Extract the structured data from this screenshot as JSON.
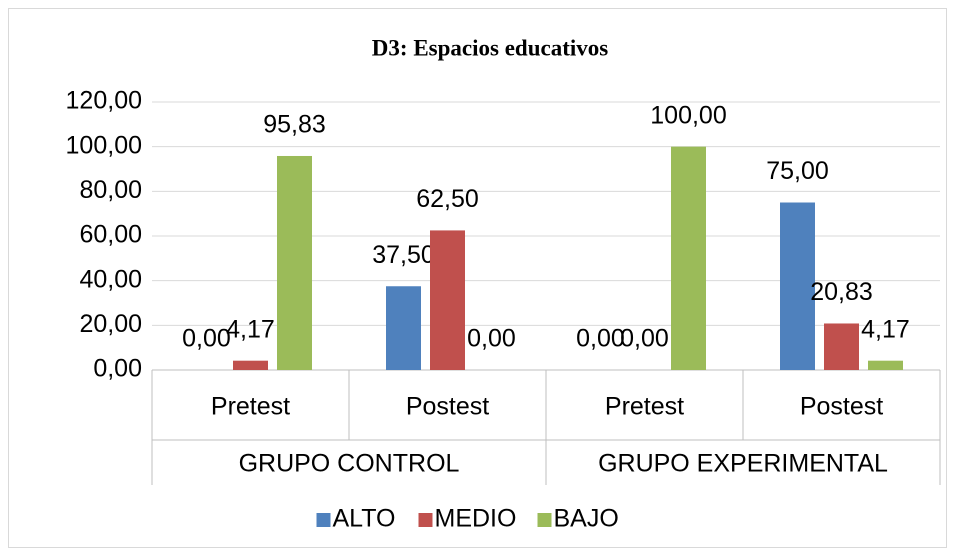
{
  "chart_data": {
    "type": "bar",
    "title": "D3: Espacios educativos",
    "categories": [
      "Pretest",
      "Postest",
      "Pretest",
      "Postest"
    ],
    "groups": [
      "GRUPO CONTROL",
      "GRUPO EXPERIMENTAL"
    ],
    "series": [
      {
        "name": "ALTO",
        "color": "#4f81bd",
        "values": [
          0,
          37.5,
          0,
          75
        ],
        "value_labels": [
          "0,00",
          "37,50",
          "0,00",
          "75,00"
        ]
      },
      {
        "name": "MEDIO",
        "color": "#c0504d",
        "values": [
          4.17,
          62.5,
          0,
          20.83
        ],
        "value_labels": [
          "4,17",
          "62,50",
          "0,00",
          "20,83"
        ]
      },
      {
        "name": "BAJO",
        "color": "#9bbb59",
        "values": [
          95.83,
          0,
          100,
          4.17
        ],
        "value_labels": [
          "95,83",
          "0,00",
          "100,00",
          "4,17"
        ]
      }
    ],
    "ylim": [
      0,
      120
    ],
    "yticks": [
      {
        "value": 0,
        "label": "0,00"
      },
      {
        "value": 20,
        "label": "20,00"
      },
      {
        "value": 40,
        "label": "40,00"
      },
      {
        "value": 60,
        "label": "60,00"
      },
      {
        "value": 80,
        "label": "80,00"
      },
      {
        "value": 100,
        "label": "100,00"
      },
      {
        "value": 120,
        "label": "120,00"
      }
    ],
    "grid": true,
    "legend": "bottom"
  }
}
